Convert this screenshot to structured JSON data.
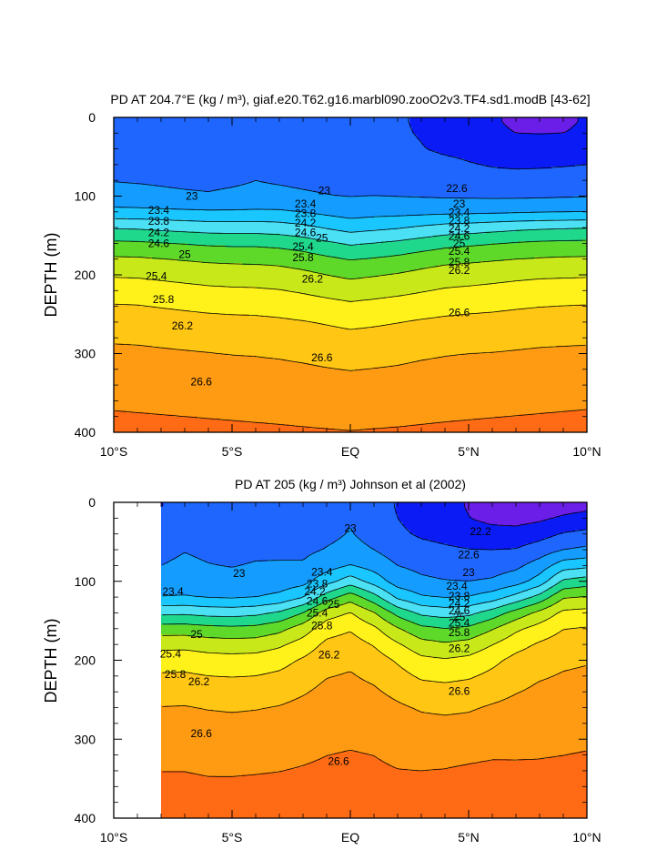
{
  "chart_data": [
    {
      "type": "contour",
      "title": "PD AT 204.7°E (kg / m³), giaf.e20.T62.g16.marbl090.zooO2v3.TF4.sd1.modB [43-62]",
      "ylabel": "DEPTH (m)",
      "xlim": [
        -10,
        10
      ],
      "ylim": [
        0,
        400
      ],
      "y_reversed": true,
      "x_ticks": [
        -10,
        -5,
        0,
        5,
        10
      ],
      "x_tick_labels": [
        "10°S",
        "5°S",
        "EQ",
        "5°N",
        "10°N"
      ],
      "y_ticks": [
        0,
        100,
        200,
        300,
        400
      ],
      "y_tick_labels": [
        "0",
        "100",
        "200",
        "300",
        "400"
      ],
      "data_x_start": -10,
      "contour_levels": [
        22.2,
        22.6,
        23.0,
        23.4,
        23.8,
        24.2,
        24.6,
        25.0,
        25.4,
        25.8,
        26.2,
        26.6,
        27.0
      ],
      "contour_labels": [
        {
          "text": "23",
          "x": -6.7,
          "y": 100
        },
        {
          "text": "23.4",
          "x": -8.1,
          "y": 118
        },
        {
          "text": "23.8",
          "x": -8.1,
          "y": 132
        },
        {
          "text": "24.2",
          "x": -8.1,
          "y": 146
        },
        {
          "text": "24.6",
          "x": -8.1,
          "y": 160
        },
        {
          "text": "25",
          "x": -7.0,
          "y": 174
        },
        {
          "text": "25.4",
          "x": -8.2,
          "y": 202
        },
        {
          "text": "25.8",
          "x": -7.9,
          "y": 231
        },
        {
          "text": "26.2",
          "x": -7.1,
          "y": 265
        },
        {
          "text": "26.6",
          "x": -6.3,
          "y": 336
        },
        {
          "text": "23",
          "x": -1.1,
          "y": 93
        },
        {
          "text": "23.4",
          "x": -1.9,
          "y": 110
        },
        {
          "text": "23.8",
          "x": -1.9,
          "y": 122
        },
        {
          "text": "24.2",
          "x": -1.9,
          "y": 134
        },
        {
          "text": "24.6",
          "x": -1.9,
          "y": 146
        },
        {
          "text": "25",
          "x": -1.2,
          "y": 153
        },
        {
          "text": "25.4",
          "x": -2.0,
          "y": 164
        },
        {
          "text": "25.8",
          "x": -2.0,
          "y": 178
        },
        {
          "text": "26.2",
          "x": -1.6,
          "y": 205
        },
        {
          "text": "26.6",
          "x": -1.2,
          "y": 305
        },
        {
          "text": "22.6",
          "x": 4.5,
          "y": 90
        },
        {
          "text": "23",
          "x": 4.6,
          "y": 110
        },
        {
          "text": "23.4",
          "x": 4.6,
          "y": 121
        },
        {
          "text": "23.8",
          "x": 4.6,
          "y": 131
        },
        {
          "text": "24.2",
          "x": 4.6,
          "y": 141
        },
        {
          "text": "24.6",
          "x": 4.6,
          "y": 151
        },
        {
          "text": "25",
          "x": 4.6,
          "y": 160
        },
        {
          "text": "25.4",
          "x": 4.6,
          "y": 170
        },
        {
          "text": "25.8",
          "x": 4.6,
          "y": 184
        },
        {
          "text": "26.2",
          "x": 4.6,
          "y": 194
        },
        {
          "text": "26.6",
          "x": 4.6,
          "y": 248
        }
      ],
      "x": [
        -10,
        -9,
        -8,
        -7,
        -6,
        -5,
        -4,
        -3,
        -2,
        -1,
        0,
        1,
        2,
        3,
        4,
        5,
        6,
        7,
        8,
        9,
        10
      ],
      "depth": [
        5,
        20,
        40,
        60,
        80,
        100,
        120,
        140,
        160,
        180,
        200,
        230,
        260,
        300,
        350,
        400
      ],
      "values": [
        [
          22.95,
          22.94,
          22.9,
          22.88,
          22.89,
          22.89,
          22.89,
          22.84,
          22.7,
          22.79,
          22.9,
          22.84,
          22.65,
          22.54,
          22.44,
          22.39,
          22.24,
          22.14,
          22.13,
          22.15,
          22.23
        ],
        [
          22.95,
          22.94,
          22.9,
          22.89,
          22.9,
          22.9,
          22.9,
          22.86,
          22.73,
          22.79,
          22.9,
          22.84,
          22.66,
          22.57,
          22.48,
          22.43,
          22.27,
          22.2,
          22.19,
          22.2,
          22.25
        ],
        [
          22.96,
          22.95,
          22.91,
          22.9,
          22.91,
          22.91,
          22.92,
          22.9,
          22.81,
          22.82,
          22.9,
          22.86,
          22.71,
          22.62,
          22.53,
          22.48,
          22.38,
          22.36,
          22.36,
          22.37,
          22.4
        ],
        [
          22.97,
          22.96,
          22.92,
          22.91,
          22.92,
          22.93,
          22.96,
          22.95,
          22.9,
          22.88,
          22.9,
          22.89,
          22.82,
          22.76,
          22.71,
          22.63,
          22.57,
          22.54,
          22.55,
          22.57,
          22.6
        ],
        [
          22.99,
          22.98,
          22.97,
          22.96,
          22.95,
          22.97,
          23.0,
          22.98,
          22.96,
          22.94,
          22.93,
          22.94,
          22.92,
          22.88,
          22.84,
          22.81,
          22.76,
          22.75,
          22.76,
          22.79,
          22.82
        ],
        [
          23.1,
          23.08,
          23.05,
          23.03,
          23.02,
          23.04,
          23.05,
          23.05,
          23.03,
          23.01,
          22.99,
          23.0,
          22.99,
          22.98,
          22.96,
          22.95,
          22.94,
          22.94,
          22.95,
          22.97,
          22.98
        ],
        [
          23.53,
          23.52,
          23.49,
          23.47,
          23.45,
          23.45,
          23.47,
          23.46,
          23.39,
          23.3,
          23.22,
          23.26,
          23.27,
          23.29,
          23.31,
          23.32,
          23.34,
          23.36,
          23.38,
          23.39,
          23.4
        ],
        [
          24.16,
          24.15,
          24.1,
          24.06,
          24.02,
          24.01,
          24.01,
          23.98,
          23.9,
          23.77,
          23.65,
          23.71,
          23.77,
          23.86,
          23.95,
          23.99,
          24.05,
          24.1,
          24.14,
          24.16,
          24.18
        ],
        [
          24.68,
          24.66,
          24.62,
          24.58,
          24.54,
          24.52,
          24.52,
          24.48,
          24.4,
          24.27,
          24.15,
          24.21,
          24.28,
          24.38,
          24.48,
          24.53,
          24.58,
          24.63,
          24.67,
          24.69,
          24.7
        ],
        [
          25.06,
          25.05,
          25.01,
          24.97,
          24.93,
          24.91,
          24.9,
          24.87,
          24.79,
          24.68,
          24.58,
          24.63,
          24.7,
          24.8,
          24.88,
          24.92,
          24.96,
          25.0,
          25.03,
          25.05,
          25.06
        ],
        [
          25.36,
          25.35,
          25.31,
          25.27,
          25.23,
          25.21,
          25.2,
          25.17,
          25.1,
          25.0,
          24.92,
          24.97,
          25.03,
          25.12,
          25.2,
          25.23,
          25.27,
          25.31,
          25.34,
          25.35,
          25.36
        ],
        [
          25.73,
          25.72,
          25.68,
          25.64,
          25.6,
          25.58,
          25.57,
          25.54,
          25.48,
          25.41,
          25.35,
          25.39,
          25.44,
          25.5,
          25.56,
          25.59,
          25.62,
          25.66,
          25.69,
          25.71,
          25.72
        ],
        [
          26.02,
          26.01,
          25.98,
          25.95,
          25.92,
          25.9,
          25.89,
          25.86,
          25.82,
          25.77,
          25.72,
          25.75,
          25.79,
          25.84,
          25.88,
          25.91,
          25.93,
          25.96,
          25.99,
          26.0,
          26.01
        ],
        [
          26.28,
          26.27,
          26.25,
          26.23,
          26.21,
          26.19,
          26.18,
          26.16,
          26.13,
          26.09,
          26.06,
          26.08,
          26.11,
          26.15,
          26.18,
          26.2,
          26.21,
          26.23,
          26.25,
          26.26,
          26.27
        ],
        [
          26.51,
          26.5,
          26.49,
          26.48,
          26.47,
          26.46,
          26.45,
          26.44,
          26.42,
          26.4,
          26.38,
          26.4,
          26.41,
          26.44,
          26.46,
          26.47,
          26.48,
          26.49,
          26.5,
          26.51,
          26.52
        ],
        [
          26.71,
          26.7,
          26.69,
          26.68,
          26.67,
          26.66,
          26.65,
          26.64,
          26.63,
          26.62,
          26.61,
          26.62,
          26.63,
          26.64,
          26.65,
          26.66,
          26.67,
          26.68,
          26.69,
          26.7,
          26.71
        ]
      ]
    },
    {
      "type": "contour",
      "title": "PD AT 205 (kg / m³) Johnson et al (2002)",
      "ylabel": "DEPTH (m)",
      "xlim": [
        -10,
        10
      ],
      "ylim": [
        0,
        400
      ],
      "y_reversed": true,
      "x_ticks": [
        -10,
        -5,
        0,
        5,
        10
      ],
      "x_tick_labels": [
        "10°S",
        "5°S",
        "EQ",
        "5°N",
        "10°N"
      ],
      "y_ticks": [
        0,
        100,
        200,
        300,
        400
      ],
      "y_tick_labels": [
        "0",
        "100",
        "200",
        "300",
        "400"
      ],
      "data_x_start": -8,
      "contour_levels": [
        22.2,
        22.6,
        23.0,
        23.4,
        23.8,
        24.2,
        24.6,
        25.0,
        25.4,
        25.8,
        26.2,
        26.6,
        27.0
      ],
      "contour_labels": [
        {
          "text": "23",
          "x": -4.7,
          "y": 90
        },
        {
          "text": "23.4",
          "x": -7.5,
          "y": 113
        },
        {
          "text": "25",
          "x": -6.5,
          "y": 167
        },
        {
          "text": "25.4",
          "x": -7.6,
          "y": 192
        },
        {
          "text": "25.8",
          "x": -7.4,
          "y": 218
        },
        {
          "text": "26.2",
          "x": -6.4,
          "y": 227
        },
        {
          "text": "26.6",
          "x": -6.3,
          "y": 293
        },
        {
          "text": "23",
          "x": 0.0,
          "y": 33
        },
        {
          "text": "23.4",
          "x": -1.2,
          "y": 88
        },
        {
          "text": "23.8",
          "x": -1.4,
          "y": 103
        },
        {
          "text": "24.2",
          "x": -1.5,
          "y": 113
        },
        {
          "text": "24.6",
          "x": -1.4,
          "y": 125
        },
        {
          "text": "25",
          "x": -0.7,
          "y": 129
        },
        {
          "text": "25.4",
          "x": -1.4,
          "y": 140
        },
        {
          "text": "25.8",
          "x": -1.2,
          "y": 156
        },
        {
          "text": "26.2",
          "x": -0.9,
          "y": 193
        },
        {
          "text": "26.6",
          "x": -0.5,
          "y": 328
        },
        {
          "text": "22.2",
          "x": 5.5,
          "y": 37
        },
        {
          "text": "22.6",
          "x": 5.0,
          "y": 66
        },
        {
          "text": "23",
          "x": 5.0,
          "y": 89
        },
        {
          "text": "23.4",
          "x": 4.5,
          "y": 106
        },
        {
          "text": "23.8",
          "x": 4.6,
          "y": 119
        },
        {
          "text": "24.2",
          "x": 4.6,
          "y": 128
        },
        {
          "text": "24.6",
          "x": 4.6,
          "y": 137
        },
        {
          "text": "25",
          "x": 4.6,
          "y": 145
        },
        {
          "text": "25.4",
          "x": 4.6,
          "y": 153
        },
        {
          "text": "25.8",
          "x": 4.6,
          "y": 165
        },
        {
          "text": "26.2",
          "x": 4.6,
          "y": 185
        },
        {
          "text": "26.6",
          "x": 4.6,
          "y": 239
        }
      ],
      "x": [
        -8,
        -7,
        -6,
        -5,
        -4,
        -3,
        -2,
        -1,
        0,
        1,
        2,
        3,
        4,
        5,
        6,
        7,
        8,
        9,
        10
      ],
      "depth": [
        5,
        20,
        40,
        60,
        80,
        100,
        120,
        140,
        160,
        180,
        200,
        230,
        260,
        300,
        350,
        400
      ],
      "values": [
        [
          22.58,
          22.9,
          22.8,
          22.75,
          22.8,
          22.77,
          22.7,
          22.8,
          22.93,
          22.78,
          22.57,
          22.42,
          22.34,
          22.17,
          22.0,
          21.91,
          21.94,
          22.03,
          22.1
        ],
        [
          22.66,
          22.95,
          22.81,
          22.78,
          22.83,
          22.79,
          22.74,
          22.86,
          22.98,
          22.81,
          22.6,
          22.45,
          22.36,
          22.21,
          22.09,
          22.05,
          22.13,
          22.26,
          22.35
        ],
        [
          22.8,
          22.97,
          22.87,
          22.84,
          22.87,
          22.86,
          22.81,
          22.92,
          23.02,
          22.89,
          22.67,
          22.55,
          22.48,
          22.41,
          22.35,
          22.35,
          22.45,
          22.63,
          22.7
        ],
        [
          22.93,
          22.99,
          22.95,
          22.92,
          22.95,
          22.94,
          22.92,
          23.02,
          23.1,
          23.0,
          22.8,
          22.72,
          22.66,
          22.61,
          22.6,
          22.62,
          22.79,
          23.0,
          23.09
        ],
        [
          23.0,
          23.05,
          23.01,
          22.99,
          23.02,
          23.03,
          23.04,
          23.23,
          23.42,
          23.24,
          23.0,
          22.91,
          22.84,
          22.81,
          22.83,
          22.91,
          23.18,
          23.61,
          23.7
        ],
        [
          23.12,
          23.15,
          23.1,
          23.08,
          23.12,
          23.16,
          23.26,
          23.65,
          24.01,
          23.64,
          23.2,
          23.07,
          23.02,
          23.0,
          23.05,
          23.22,
          23.58,
          24.27,
          24.4
        ],
        [
          23.42,
          23.44,
          23.38,
          23.36,
          23.4,
          23.51,
          23.79,
          24.41,
          24.82,
          24.35,
          23.72,
          23.45,
          23.38,
          23.42,
          23.6,
          23.94,
          24.34,
          24.96,
          25.03
        ],
        [
          24.11,
          24.13,
          24.06,
          24.04,
          24.1,
          24.26,
          24.61,
          25.21,
          25.42,
          25.03,
          24.47,
          24.11,
          24.02,
          24.09,
          24.38,
          24.76,
          25.11,
          25.49,
          25.54
        ],
        [
          24.79,
          24.8,
          24.73,
          24.7,
          24.73,
          24.88,
          25.2,
          25.63,
          25.76,
          25.48,
          25.04,
          24.71,
          24.61,
          24.69,
          24.97,
          25.32,
          25.56,
          25.79,
          25.83
        ],
        [
          25.27,
          25.28,
          25.21,
          25.18,
          25.2,
          25.33,
          25.57,
          25.89,
          25.98,
          25.77,
          25.45,
          25.15,
          25.06,
          25.14,
          25.39,
          25.66,
          25.85,
          25.99,
          26.03
        ],
        [
          25.62,
          25.63,
          25.57,
          25.55,
          25.57,
          25.66,
          25.85,
          26.07,
          26.13,
          25.99,
          25.75,
          25.5,
          25.44,
          25.51,
          25.7,
          25.92,
          26.04,
          26.13,
          26.17
        ],
        [
          25.96,
          25.97,
          25.92,
          25.9,
          25.92,
          25.98,
          26.1,
          26.24,
          26.28,
          26.19,
          26.03,
          25.86,
          25.82,
          25.87,
          25.99,
          26.12,
          26.22,
          26.28,
          26.31
        ],
        [
          26.21,
          26.22,
          26.18,
          26.16,
          26.18,
          26.22,
          26.3,
          26.39,
          26.42,
          26.37,
          26.26,
          26.16,
          26.13,
          26.16,
          26.24,
          26.31,
          26.36,
          26.4,
          26.43
        ],
        [
          26.46,
          26.46,
          26.43,
          26.42,
          26.43,
          26.46,
          26.5,
          26.55,
          26.57,
          26.55,
          26.48,
          26.44,
          26.42,
          26.43,
          26.47,
          26.5,
          26.52,
          26.53,
          26.55
        ],
        [
          26.63,
          26.63,
          26.61,
          26.61,
          26.62,
          26.63,
          26.65,
          26.67,
          26.68,
          26.67,
          26.64,
          26.64,
          26.66,
          26.7,
          26.72,
          26.69,
          26.68,
          26.7,
          26.72
        ],
        [
          26.74,
          26.75,
          26.72,
          26.72,
          26.73,
          26.74,
          26.75,
          26.76,
          26.76,
          26.75,
          26.73,
          26.76,
          26.8,
          26.85,
          26.87,
          26.84,
          26.83,
          26.84,
          26.86
        ]
      ]
    }
  ]
}
